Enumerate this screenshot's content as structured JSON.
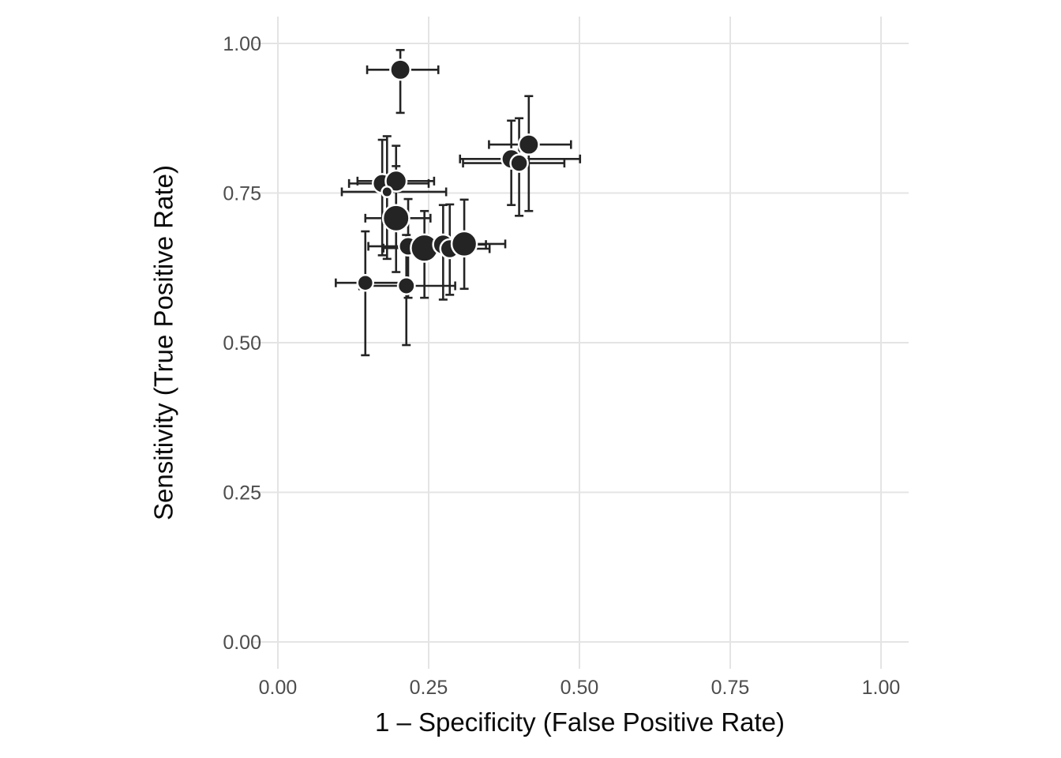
{
  "chart_data": {
    "type": "scatter",
    "title": "",
    "xlabel": "1 – Specificity (False Positive Rate)",
    "ylabel": "Sensitivity (True Positive Rate)",
    "xlim": [
      0,
      1
    ],
    "ylim": [
      0,
      1
    ],
    "grid": "major-only",
    "legend": "none",
    "marker": "filled-circle-white-outline",
    "error_bars": "horizontal-and-vertical-with-caps",
    "colors": {
      "point": "#242424",
      "error_bar": "#242424",
      "point_outline": "#ffffff",
      "grid": "#e4e4e4",
      "tick_label": "#4d4d4d",
      "axis_title": "#0a0a0a",
      "background": "#ffffff"
    },
    "x_ticks": [
      {
        "value": 0.0,
        "label": "0.00"
      },
      {
        "value": 0.25,
        "label": "0.25"
      },
      {
        "value": 0.5,
        "label": "0.50"
      },
      {
        "value": 0.75,
        "label": "0.75"
      },
      {
        "value": 1.0,
        "label": "1.00"
      }
    ],
    "y_ticks": [
      {
        "value": 0.0,
        "label": "0.00"
      },
      {
        "value": 0.25,
        "label": "0.25"
      },
      {
        "value": 0.5,
        "label": "0.50"
      },
      {
        "value": 0.75,
        "label": "0.75"
      },
      {
        "value": 1.0,
        "label": "1.00"
      }
    ],
    "points": [
      {
        "x": 0.203,
        "y": 0.956,
        "x_ci": [
          0.148,
          0.266
        ],
        "y_ci": [
          0.884,
          0.989
        ],
        "size": 12.7
      },
      {
        "x": 0.173,
        "y": 0.766,
        "x_ci": [
          0.118,
          0.25
        ],
        "y_ci": [
          0.646,
          0.839
        ],
        "size": 12.0
      },
      {
        "x": 0.196,
        "y": 0.77,
        "x_ci": [
          0.132,
          0.259
        ],
        "y_ci": [
          0.66,
          0.829
        ],
        "size": 13.3
      },
      {
        "x": 0.181,
        "y": 0.752,
        "x_ci": [
          0.106,
          0.279
        ],
        "y_ci": [
          0.64,
          0.845
        ],
        "size": 6.7
      },
      {
        "x": 0.196,
        "y": 0.708,
        "x_ci": [
          0.145,
          0.253
        ],
        "y_ci": [
          0.618,
          0.795
        ],
        "size": 16.7
      },
      {
        "x": 0.387,
        "y": 0.807,
        "x_ci": [
          0.302,
          0.501
        ],
        "y_ci": [
          0.73,
          0.871
        ],
        "size": 12.3
      },
      {
        "x": 0.4,
        "y": 0.8,
        "x_ci": [
          0.307,
          0.475
        ],
        "y_ci": [
          0.712,
          0.875
        ],
        "size": 11.0
      },
      {
        "x": 0.416,
        "y": 0.831,
        "x_ci": [
          0.35,
          0.486
        ],
        "y_ci": [
          0.72,
          0.912
        ],
        "size": 12.7
      },
      {
        "x": 0.216,
        "y": 0.661,
        "x_ci": [
          0.15,
          0.285
        ],
        "y_ci": [
          0.575,
          0.74
        ],
        "size": 11.7
      },
      {
        "x": 0.243,
        "y": 0.658,
        "x_ci": [
          0.175,
          0.31
        ],
        "y_ci": [
          0.575,
          0.72
        ],
        "size": 17.3
      },
      {
        "x": 0.274,
        "y": 0.664,
        "x_ci": [
          0.205,
          0.345
        ],
        "y_ci": [
          0.572,
          0.73
        ],
        "size": 12.7
      },
      {
        "x": 0.285,
        "y": 0.657,
        "x_ci": [
          0.215,
          0.351
        ],
        "y_ci": [
          0.58,
          0.731
        ],
        "size": 12.0
      },
      {
        "x": 0.309,
        "y": 0.665,
        "x_ci": [
          0.235,
          0.377
        ],
        "y_ci": [
          0.59,
          0.739
        ],
        "size": 16.0
      },
      {
        "x": 0.145,
        "y": 0.6,
        "x_ci": [
          0.096,
          0.205
        ],
        "y_ci": [
          0.479,
          0.686
        ],
        "size": 10.0
      },
      {
        "x": 0.213,
        "y": 0.595,
        "x_ci": [
          0.135,
          0.294
        ],
        "y_ci": [
          0.496,
          0.68
        ],
        "size": 10.7
      }
    ]
  }
}
